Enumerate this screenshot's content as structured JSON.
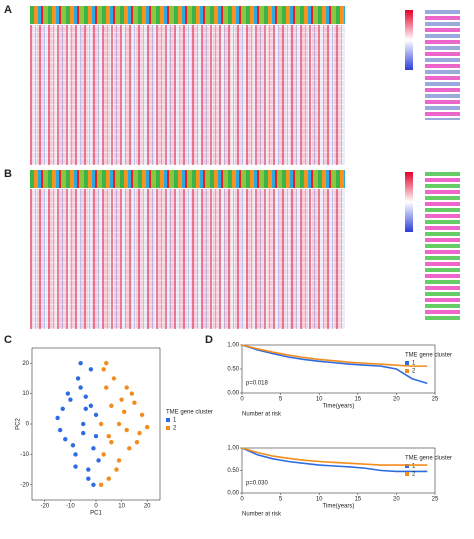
{
  "panel_labels": [
    "A",
    "B",
    "C",
    "D"
  ],
  "chart_data": [
    {
      "type": "scatter",
      "x_label": "PC1",
      "y_label": "PC2",
      "legend_title": "TME gene cluster",
      "xlim": [
        -25,
        25
      ],
      "ylim": [
        -25,
        25
      ],
      "xticks": [
        -20,
        -10,
        0,
        10,
        20
      ],
      "yticks": [
        -20,
        -10,
        0,
        10,
        20
      ],
      "series": [
        {
          "name": "1",
          "color": "#2d6be0",
          "x": [
            -15,
            -12,
            -10,
            -8,
            -6,
            -5,
            -4,
            -3,
            -2,
            -1,
            0,
            1,
            -14,
            -11,
            -9,
            -7,
            -5,
            -3,
            -2,
            0,
            -13,
            -8,
            -6,
            -4,
            -1
          ],
          "values": [
            2,
            -5,
            8,
            -10,
            12,
            -3,
            5,
            -15,
            18,
            -8,
            3,
            -12,
            -2,
            10,
            -7,
            15,
            0,
            -18,
            6,
            -4,
            5,
            -14,
            20,
            9,
            -20
          ]
        },
        {
          "name": "2",
          "color": "#f28c1c",
          "x": [
            2,
            3,
            4,
            5,
            6,
            8,
            10,
            12,
            14,
            16,
            18,
            20,
            3,
            5,
            7,
            9,
            11,
            13,
            15,
            2,
            4,
            6,
            9,
            12,
            17
          ],
          "values": [
            0,
            -10,
            12,
            -4,
            6,
            -15,
            8,
            -2,
            10,
            -6,
            3,
            -1,
            18,
            -18,
            15,
            -12,
            4,
            -8,
            7,
            -20,
            20,
            -6,
            0,
            12,
            -3
          ]
        }
      ]
    },
    {
      "type": "line",
      "x_label": "Time(years)",
      "annotation": "p=0.018",
      "legend_title": "TME gene cluster",
      "risk_title": "Number at risk",
      "xlim": [
        0,
        25
      ],
      "ylim": [
        0,
        1
      ],
      "xticks": [
        0,
        5,
        10,
        15,
        20,
        25
      ],
      "yticks": [
        {
          "value": 0,
          "label": "0.00"
        },
        {
          "value": 0.5,
          "label": "0.50"
        },
        {
          "value": 1,
          "label": "1.00"
        }
      ],
      "x": [
        0,
        2,
        4,
        6,
        8,
        10,
        12,
        14,
        16,
        18,
        20,
        22,
        24
      ],
      "series": [
        {
          "name": "1",
          "color": "#2d6be0",
          "values": [
            1,
            0.9,
            0.82,
            0.75,
            0.7,
            0.66,
            0.63,
            0.6,
            0.58,
            0.56,
            0.5,
            0.3,
            0.2
          ]
        },
        {
          "name": "2",
          "color": "#f28c1c",
          "values": [
            1,
            0.92,
            0.85,
            0.79,
            0.74,
            0.7,
            0.67,
            0.64,
            0.62,
            0.6,
            0.58,
            0.56,
            0.56
          ]
        }
      ]
    },
    {
      "type": "line",
      "x_label": "Time(years)",
      "annotation": "p=0.030",
      "legend_title": "TME gene cluster",
      "risk_title": "Number at risk",
      "xlim": [
        0,
        25
      ],
      "ylim": [
        0,
        1
      ],
      "xticks": [
        0,
        5,
        10,
        15,
        20,
        25
      ],
      "yticks": [
        {
          "value": 0,
          "label": "0.00"
        },
        {
          "value": 0.5,
          "label": "0.50"
        },
        {
          "value": 1,
          "label": "1.00"
        }
      ],
      "x": [
        0,
        2,
        4,
        6,
        8,
        10,
        12,
        14,
        16,
        18,
        20,
        22,
        24
      ],
      "series": [
        {
          "name": "1",
          "color": "#2d6be0",
          "values": [
            1,
            0.85,
            0.76,
            0.7,
            0.66,
            0.62,
            0.6,
            0.58,
            0.55,
            0.5,
            0.48,
            0.48,
            0.48
          ]
        },
        {
          "name": "2",
          "color": "#f28c1c",
          "values": [
            1,
            0.9,
            0.82,
            0.77,
            0.73,
            0.7,
            0.68,
            0.66,
            0.64,
            0.62,
            0.62,
            0.62,
            0.62
          ]
        }
      ]
    }
  ]
}
